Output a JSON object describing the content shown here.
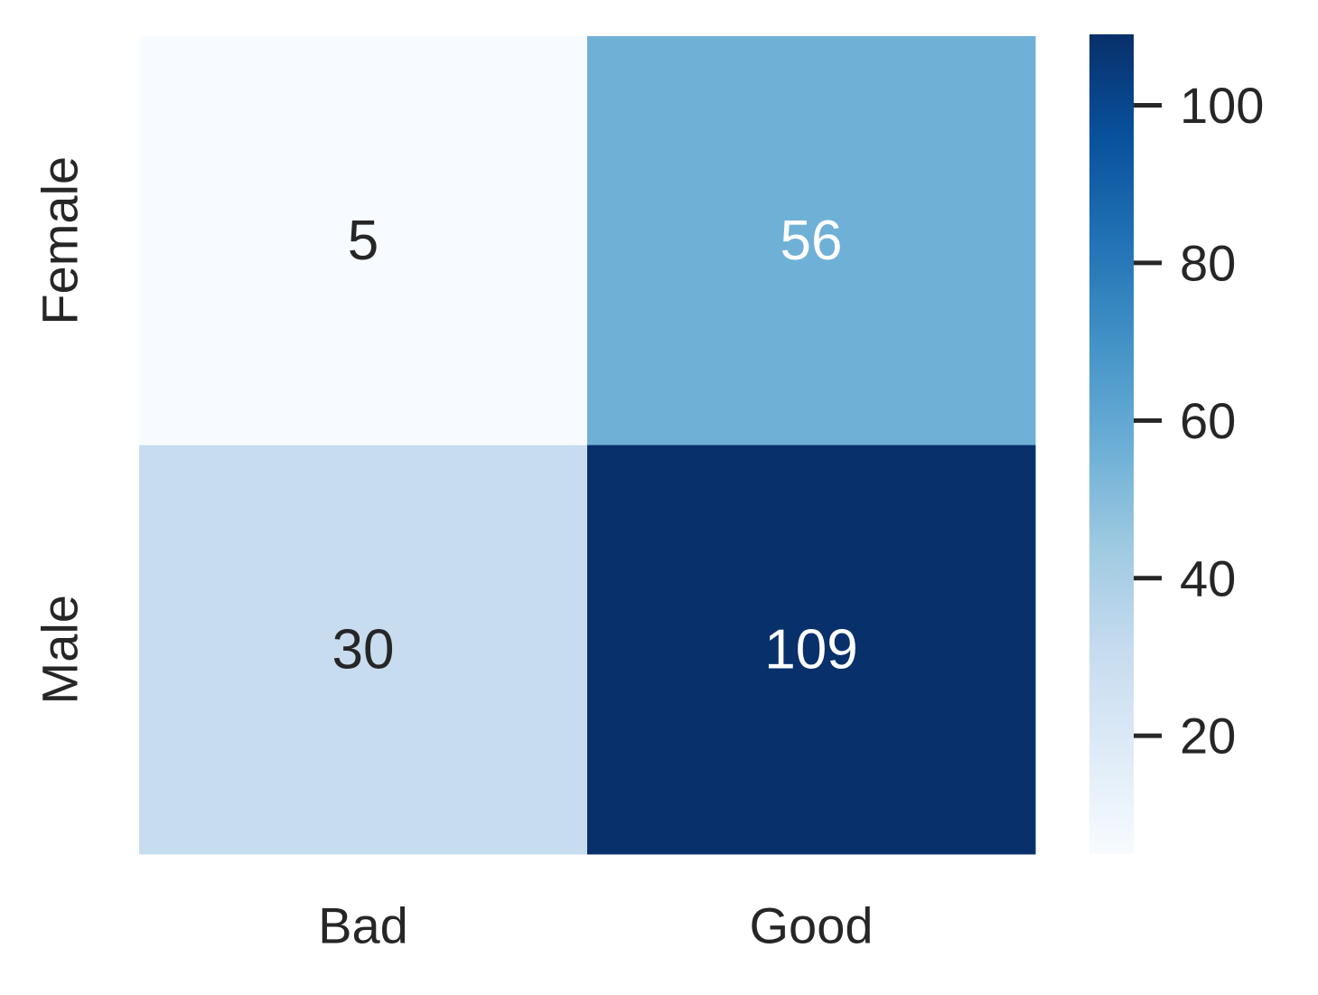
{
  "chart_data": {
    "type": "heatmap",
    "rows": [
      "Female",
      "Male"
    ],
    "columns": [
      "Bad",
      "Good"
    ],
    "values": [
      [
        5,
        56
      ],
      [
        30,
        109
      ]
    ],
    "colormap": "Blues",
    "vmin": 5,
    "vmax": 109,
    "colorbar": {
      "ticks": [
        20,
        40,
        60,
        80,
        100
      ],
      "tick_labels": [
        "20",
        "40",
        "60",
        "80",
        "100"
      ]
    },
    "annotation_colors": {
      "dark_text": "#262626",
      "light_text": "#ffffff"
    }
  }
}
